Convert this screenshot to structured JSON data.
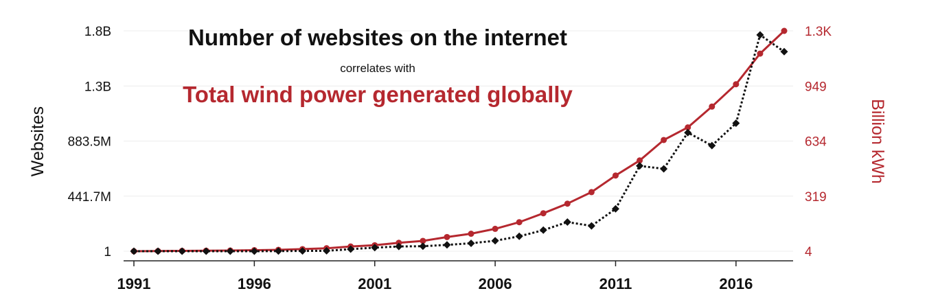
{
  "chart_data": {
    "type": "line",
    "title": "Number of websites on the internet",
    "subtitle": "correlates with",
    "title_secondary": "Total wind power generated globally",
    "x": [
      1991,
      1992,
      1993,
      1994,
      1995,
      1996,
      1997,
      1998,
      1999,
      2000,
      2001,
      2002,
      2003,
      2004,
      2005,
      2006,
      2007,
      2008,
      2009,
      2010,
      2011,
      2012,
      2013,
      2014,
      2015,
      2016,
      2017,
      2018
    ],
    "xticks": [
      "1991",
      "1996",
      "2001",
      "2006",
      "2011",
      "2016"
    ],
    "y_left": {
      "label": "Websites",
      "ticks": [
        "1",
        "441.7M",
        "883.5M",
        "1.3B",
        "1.8B"
      ],
      "range": [
        1,
        1800000000
      ]
    },
    "y_right": {
      "label": "Billion kWh",
      "ticks": [
        "4",
        "319",
        "634",
        "949",
        "1.3K"
      ],
      "range": [
        4,
        1264
      ]
    },
    "series": [
      {
        "name": "Websites",
        "axis": "left",
        "color": "#111111",
        "style": "dotted",
        "marker": "diamond",
        "values": [
          1,
          10,
          130,
          2700,
          23500,
          257600,
          1117000,
          2410000,
          3177000,
          17087000,
          29254000,
          38760000,
          40912000,
          51611000,
          64780000,
          85507000,
          121892000,
          172338000,
          238027000,
          206956000,
          346004000,
          697090000,
          672985000,
          968882000,
          863105000,
          1045534000,
          1766926000,
          1630322000
        ]
      },
      {
        "name": "Total wind power generated globally",
        "axis": "right",
        "color": "#b5282f",
        "style": "solid",
        "marker": "circle",
        "values": [
          4,
          5,
          6,
          7,
          8,
          10,
          12,
          16,
          21,
          31,
          38,
          52,
          63,
          85,
          104,
          132,
          170,
          221,
          276,
          342,
          437,
          523,
          640,
          712,
          831,
          959,
          1134,
          1264
        ]
      }
    ],
    "colors": {
      "primary": "#111111",
      "secondary": "#b5282f"
    },
    "grid": true
  }
}
